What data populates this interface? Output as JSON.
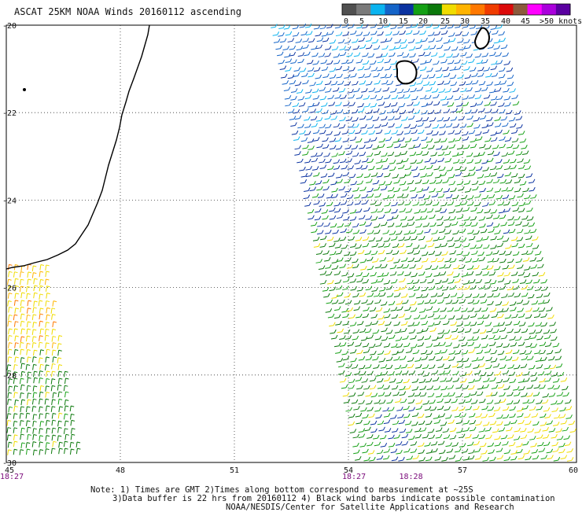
{
  "title": "ASCAT 25KM NOAA Winds 20160112 ascending",
  "legend": {
    "labels": [
      "0",
      "5",
      "10",
      "15",
      "20",
      "25",
      "30",
      "35",
      "40",
      "45",
      ">50 knots"
    ],
    "colors": [
      "#505050",
      "#7a7a7a",
      "#0ab4f0",
      "#1464c8",
      "#0a32a0",
      "#14a014",
      "#0a780a",
      "#f0dc00",
      "#ffb400",
      "#ff7800",
      "#f03c00",
      "#dc0a0a",
      "#8c5a3c",
      "#ff00ff",
      "#aa00dc",
      "#5a00a0"
    ]
  },
  "map": {
    "lon_range": [
      45,
      60
    ],
    "lat_range": [
      -30,
      -20
    ],
    "x_ticks": [
      "45",
      "48",
      "51",
      "54",
      "57",
      "60"
    ],
    "y_ticks": [
      "-20",
      "-22",
      "-24",
      "-26",
      "-28",
      "-30"
    ],
    "time_labels": [
      {
        "text": "18:27",
        "lon": 45
      },
      {
        "text": "18:27",
        "lon": 54
      },
      {
        "text": "18:28",
        "lon": 55.5
      }
    ]
  },
  "notes": [
    "Note: 1) Times are GMT 2)Times along bottom correspond to measurement at ~25S",
    "3)Data buffer is 22 hrs from 20160112 4) Black wind barbs indicate possible contamination",
    "NOAA/NESDIS/Center for Satellite Applications and Research"
  ]
}
